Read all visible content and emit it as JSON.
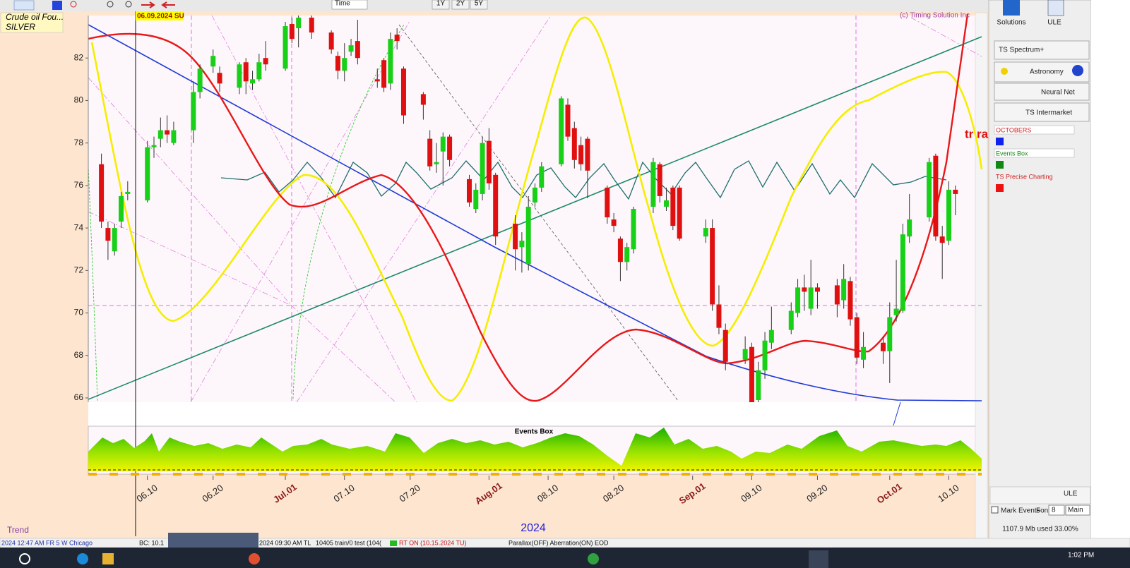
{
  "chart_data": {
    "type": "candlestick",
    "title": "Crude oil Fou...",
    "subtitle": "SILVER",
    "annotations": [
      "06.09.2024 SU",
      "(c) Timing Solution Inc",
      "tr ra",
      "2024",
      "Trend",
      "Events Box"
    ],
    "x": [
      "06.03",
      "06.04",
      "06.05",
      "06.06",
      "06.07",
      "06.10",
      "06.11",
      "06.12",
      "06.13",
      "06.14",
      "06.17",
      "06.18",
      "06.20",
      "06.21",
      "06.24",
      "06.25",
      "06.26",
      "06.27",
      "06.28",
      "07.01",
      "07.02",
      "07.03",
      "07.05",
      "07.08",
      "07.09",
      "07.10",
      "07.11",
      "07.12",
      "07.15",
      "07.16",
      "07.17",
      "07.18",
      "07.19",
      "07.22",
      "07.23",
      "07.24",
      "07.25",
      "07.26",
      "07.29",
      "07.30",
      "07.31",
      "08.01",
      "08.02",
      "08.05",
      "08.06",
      "08.07",
      "08.08",
      "08.09",
      "08.12",
      "08.13",
      "08.14",
      "08.15",
      "08.16",
      "08.19",
      "08.20",
      "08.21",
      "08.22",
      "08.23",
      "08.26",
      "08.27",
      "08.28",
      "08.29",
      "08.30",
      "09.03",
      "09.04",
      "09.05",
      "09.06",
      "09.09",
      "09.10",
      "09.11",
      "09.12",
      "09.13",
      "09.16",
      "09.17",
      "09.18",
      "09.19",
      "09.20",
      "09.23",
      "09.24",
      "09.25",
      "09.26",
      "09.27",
      "09.30",
      "10.01",
      "10.02",
      "10.03",
      "10.04",
      "10.07",
      "10.08",
      "10.09",
      "10.10",
      "10.11"
    ],
    "open": [
      77.0,
      74.0,
      72.9,
      74.3,
      75.6,
      75.3,
      77.8,
      78.2,
      78.6,
      78.0,
      78.6,
      80.4,
      81.6,
      81.3,
      80.6,
      81.8,
      80.8,
      81.0,
      82.0,
      81.5,
      83.6,
      83.4,
      83.9,
      83.2,
      82.1,
      81.4,
      82.3,
      82.8,
      81.0,
      81.9,
      80.8,
      83.1,
      81.5,
      80.3,
      78.2,
      77.0,
      77.6,
      78.3,
      76.3,
      74.9,
      75.6,
      78.1,
      76.5,
      74.2,
      73.1,
      72.3,
      75.2,
      75.9,
      77.0,
      79.8,
      78.7,
      77.9,
      78.2,
      75.9,
      74.4,
      73.5,
      72.4,
      73.0,
      75.0,
      77.0,
      75.0,
      75.9,
      75.9,
      73.6,
      74.0,
      70.4,
      69.2,
      67.8,
      68.4,
      65.9,
      67.3,
      68.6,
      69.2,
      70.0,
      71.2,
      70.2,
      71.2,
      71.3,
      70.6,
      71.5,
      69.8,
      67.8,
      68.6,
      68.2,
      69.9,
      70.1,
      73.6,
      74.5,
      77.4,
      73.6,
      73.4,
      75.8
    ],
    "high": [
      77.5,
      74.3,
      74.2,
      75.7,
      76.2,
      78.1,
      78.3,
      79.2,
      79.3,
      79.0,
      80.9,
      81.7,
      82.4,
      81.6,
      81.8,
      82.0,
      81.4,
      82.2,
      82.8,
      83.7,
      83.9,
      84.0,
      84.0,
      83.3,
      82.3,
      82.7,
      82.9,
      83.8,
      81.5,
      82.0,
      83.2,
      83.4,
      81.6,
      80.4,
      78.6,
      78.0,
      78.5,
      78.4,
      76.5,
      76.1,
      78.3,
      78.7,
      76.6,
      74.6,
      73.8,
      75.5,
      76.1,
      77.1,
      80.2,
      80.1,
      79.0,
      78.3,
      78.3,
      76.0,
      74.7,
      73.6,
      73.3,
      75.0,
      77.3,
      77.1,
      75.9,
      76.0,
      76.0,
      74.4,
      74.4,
      71.3,
      69.5,
      68.9,
      68.6,
      67.7,
      69.1,
      70.3,
      70.5,
      71.6,
      71.8,
      72.5,
      71.4,
      71.6,
      72.3,
      71.7,
      70.0,
      69.1,
      68.9,
      70.5,
      72.5,
      74.2,
      75.6,
      77.3,
      77.5,
      74.1,
      76.2,
      76.0
    ],
    "low": [
      74.0,
      72.5,
      72.7,
      74.0,
      75.3,
      75.2,
      77.3,
      77.8,
      78.0,
      77.9,
      78.0,
      80.1,
      81.3,
      80.4,
      80.3,
      80.3,
      80.5,
      80.9,
      81.4,
      81.4,
      82.7,
      82.5,
      82.9,
      82.2,
      81.0,
      80.9,
      82.1,
      81.7,
      80.6,
      80.4,
      80.5,
      82.4,
      78.9,
      79.1,
      76.7,
      76.6,
      76.0,
      76.9,
      75.0,
      74.7,
      75.3,
      75.8,
      73.2,
      72.0,
      71.9,
      72.0,
      75.0,
      75.7,
      76.9,
      78.1,
      76.8,
      76.7,
      75.4,
      74.2,
      73.8,
      71.5,
      72.0,
      72.8,
      74.7,
      75.2,
      74.8,
      73.9,
      73.4,
      73.3,
      70.1,
      69.0,
      67.3,
      67.6,
      65.8,
      65.8,
      66.9,
      68.3,
      69.0,
      69.8,
      70.1,
      69.9,
      70.2,
      69.8,
      70.2,
      69.4,
      67.6,
      67.4,
      67.6,
      66.7,
      69.6,
      70.0,
      73.3,
      74.3,
      73.4,
      71.6,
      73.2,
      74.6
    ],
    "close": [
      74.3,
      73.4,
      74.0,
      75.5,
      75.7,
      77.8,
      77.9,
      78.6,
      78.4,
      78.6,
      80.4,
      81.5,
      82.1,
      80.8,
      81.7,
      80.9,
      81.0,
      81.8,
      81.7,
      83.5,
      82.9,
      83.9,
      83.2,
      82.4,
      81.4,
      82.0,
      82.6,
      82.0,
      80.9,
      80.6,
      82.9,
      82.8,
      79.3,
      79.8,
      76.9,
      77.1,
      78.3,
      77.2,
      75.2,
      75.8,
      78.0,
      76.1,
      73.6,
      73.0,
      73.4,
      75.0,
      75.9,
      76.9,
      80.1,
      78.3,
      77.2,
      77.0,
      76.7,
      74.5,
      74.1,
      72.4,
      73.1,
      74.9,
      77.1,
      75.5,
      75.3,
      74.1,
      73.5,
      74.0,
      70.4,
      69.3,
      67.7,
      68.3,
      65.8,
      67.3,
      68.7,
      69.2,
      70.1,
      71.2,
      71.0,
      71.2,
      71.0,
      70.4,
      71.6,
      69.7,
      67.9,
      68.4,
      68.2,
      69.8,
      70.2,
      73.7,
      74.4,
      77.1,
      73.6,
      73.3,
      75.8,
      75.6
    ],
    "up_color": "#18d018",
    "down_color": "#e01010",
    "ylim": [
      65.8,
      84
    ],
    "yticks": [
      66,
      68,
      70,
      72,
      74,
      76,
      78,
      80,
      82
    ],
    "xlim": [
      "06.01",
      "10.15"
    ],
    "xticks": [
      "06.10",
      "06.20",
      {
        "value": "07.01",
        "label": "Jul.01"
      },
      "07.10",
      "07.20",
      {
        "value": "08.01",
        "label": "Aug.01"
      },
      "08.10",
      "08.20",
      {
        "value": "09.01",
        "label": "Sep.01"
      },
      "09.10",
      "09.20",
      {
        "value": "10.01",
        "label": "Oct.01"
      },
      "10.10"
    ]
  },
  "ui": {
    "toolbar": {
      "interval": "Time",
      "ranges": [
        "1Y",
        "2Y",
        "5Y"
      ]
    },
    "panel": {
      "top": [
        "Solutions",
        "ULE"
      ],
      "modules": [
        "TS Spectrum+",
        "Astronomy",
        "Neural Net",
        "TS Intermarket"
      ],
      "layers": [
        "OCTOBERS",
        "Events Box",
        "TS Precise Charting"
      ],
      "ule": "ULE",
      "mark_events": "Mark Events",
      "font": "Font",
      "font_size": "8",
      "mode": "Main",
      "memory": "1107.9 Mb used 33.00%"
    },
    "status": [
      "2024  12:47 AM FR  5 W Chicago",
      "BC: 10.1",
      "2024  09:30 AM TL",
      "10405 train/0 test (104(",
      "RT ON (10.15.2024 TU)",
      "Parallax(OFF) Aberration(ON) EOD"
    ],
    "clock": "1:02 PM"
  }
}
